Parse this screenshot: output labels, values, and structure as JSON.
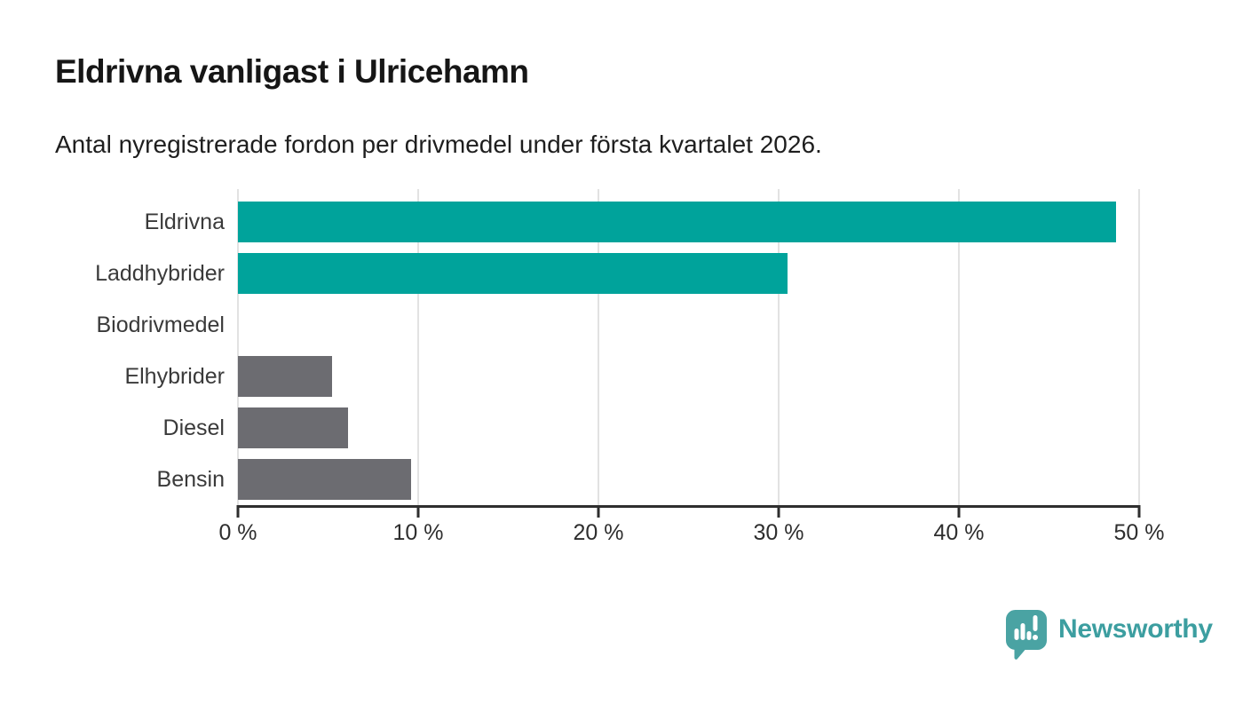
{
  "header": {
    "title": "Eldrivna vanligast i Ulricehamn",
    "subtitle": "Antal nyregistrerade fordon per drivmedel under första kvartalet 2026."
  },
  "chart_data": {
    "type": "bar",
    "orientation": "horizontal",
    "title": "Eldrivna vanligast i Ulricehamn",
    "subtitle": "Antal nyregistrerade fordon per drivmedel under första kvartalet 2026.",
    "categories": [
      "Eldrivna",
      "Laddhybrider",
      "Biodrivmedel",
      "Elhybrider",
      "Diesel",
      "Bensin"
    ],
    "values": [
      48.7,
      30.5,
      0,
      5.2,
      6.1,
      9.6
    ],
    "unit": "%",
    "xlim": [
      0,
      50
    ],
    "x_ticks": [
      0,
      10,
      20,
      30,
      40,
      50
    ],
    "x_tick_labels": [
      "0 %",
      "10 %",
      "20 %",
      "30 %",
      "40 %",
      "50 %"
    ],
    "grid": "vertical",
    "legend": "none",
    "bar_colors": [
      "#00A39B",
      "#00A39B",
      "#6C6C71",
      "#6C6C71",
      "#6C6C71",
      "#6C6C71"
    ],
    "colors": {
      "accent_teal": "#00A39B",
      "neutral_gray": "#6C6C71",
      "gridline": "#E2E2E2",
      "axis": "#2E2E2E"
    }
  },
  "branding": {
    "logo_text": "Newsworthy",
    "logo_icon": "newsworthy-bubble-chart-icon",
    "brand_color": "#3C9EA0",
    "icon_color": "#4AA3A3"
  }
}
